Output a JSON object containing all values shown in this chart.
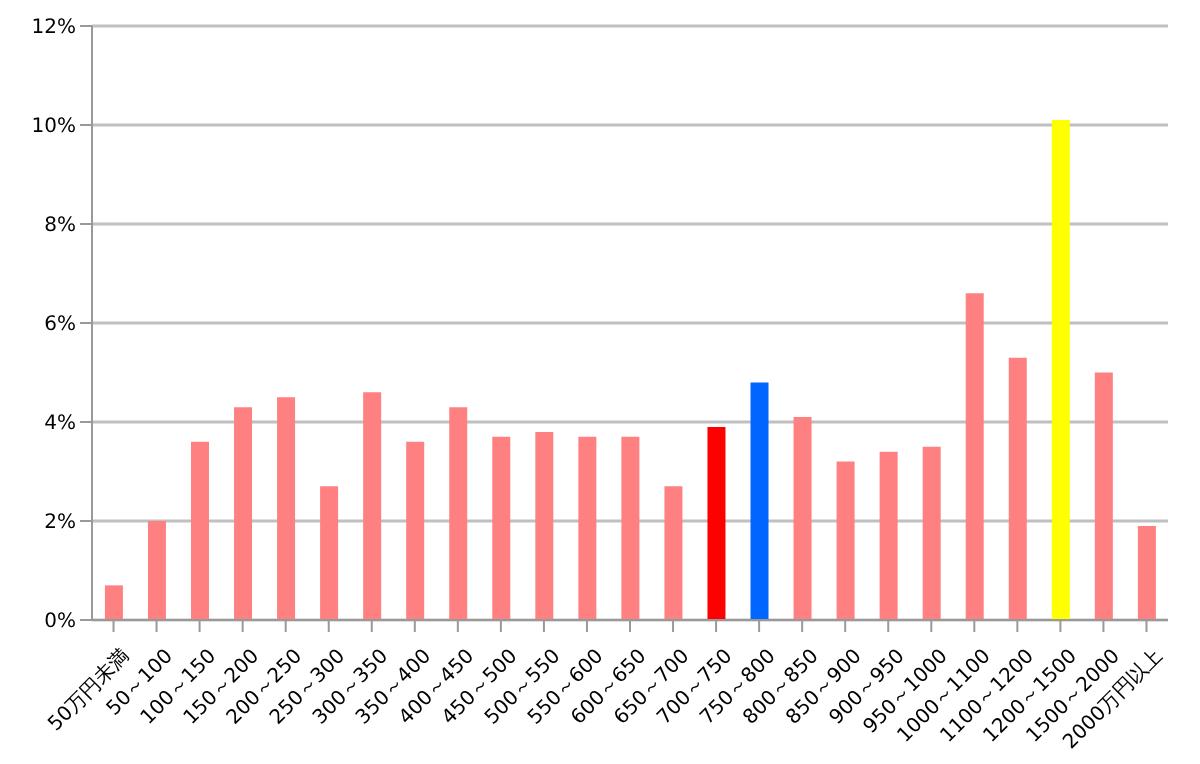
{
  "chart_data": {
    "type": "bar",
    "categories": [
      "50万円未満",
      "50～100",
      "100～150",
      "150～200",
      "200～250",
      "250～300",
      "300～350",
      "350～400",
      "400～450",
      "450～500",
      "500～550",
      "550～600",
      "600～650",
      "650～700",
      "700～750",
      "750～800",
      "800～850",
      "850～900",
      "900～950",
      "950～1000",
      "1000～1100",
      "1100～1200",
      "1200～1500",
      "1500～2000",
      "2000万円以上"
    ],
    "values": [
      0.7,
      2.0,
      3.6,
      4.3,
      4.5,
      2.7,
      4.6,
      3.6,
      4.3,
      3.7,
      3.8,
      3.7,
      3.7,
      2.7,
      3.9,
      4.8,
      4.1,
      3.2,
      3.4,
      3.5,
      6.6,
      5.3,
      10.1,
      5.0,
      1.9
    ],
    "colors": [
      "#ff8080",
      "#ff8080",
      "#ff8080",
      "#ff8080",
      "#ff8080",
      "#ff8080",
      "#ff8080",
      "#ff8080",
      "#ff8080",
      "#ff8080",
      "#ff8080",
      "#ff8080",
      "#ff8080",
      "#ff8080",
      "#ff0000",
      "#0066ff",
      "#ff8080",
      "#ff8080",
      "#ff8080",
      "#ff8080",
      "#ff8080",
      "#ff8080",
      "#ffff00",
      "#ff8080",
      "#ff8080"
    ],
    "ylim": [
      0,
      12
    ],
    "yticks": [
      {
        "value": 0,
        "label": "0%"
      },
      {
        "value": 2,
        "label": "2%"
      },
      {
        "value": 4,
        "label": "4%"
      },
      {
        "value": 6,
        "label": "6%"
      },
      {
        "value": 8,
        "label": "8%"
      },
      {
        "value": 10,
        "label": "10%"
      },
      {
        "value": 12,
        "label": "12%"
      }
    ],
    "grid": "y"
  }
}
